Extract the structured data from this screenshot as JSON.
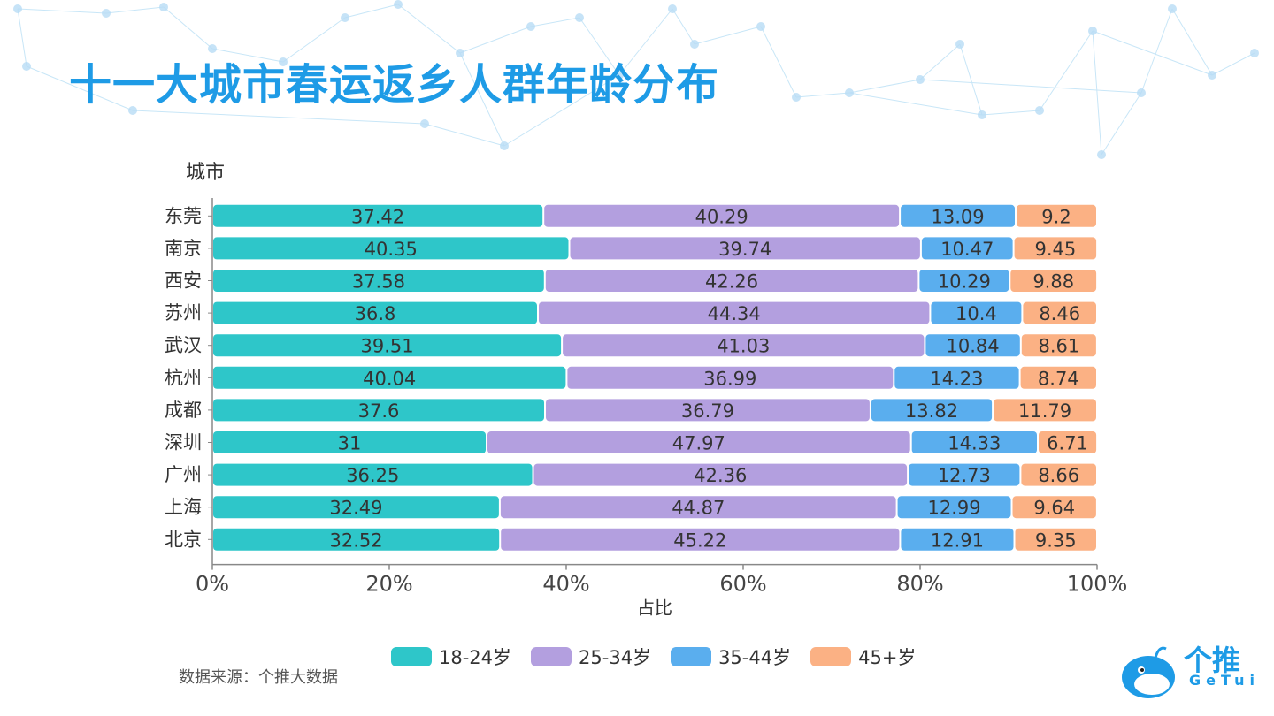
{
  "title": "十一大城市春运返乡人群年龄分布",
  "source": "数据来源：个推大数据",
  "logo": {
    "cn": "个推",
    "en": "GeTui"
  },
  "colors": {
    "title": "#1e9be6",
    "s1": "#2ec6c9",
    "s2": "#b39fdf",
    "s3": "#5aaeee",
    "s4": "#fbb184"
  },
  "chart_data": {
    "type": "bar",
    "orientation": "horizontal",
    "stacked": true,
    "ylabel": "城市",
    "xlabel": "占比",
    "xlim": [
      0,
      100
    ],
    "xticks": [
      "0%",
      "20%",
      "40%",
      "60%",
      "80%",
      "100%"
    ],
    "categories": [
      "东莞",
      "南京",
      "西安",
      "苏州",
      "武汉",
      "杭州",
      "成都",
      "深圳",
      "广州",
      "上海",
      "北京"
    ],
    "series": [
      {
        "name": "18-24岁",
        "color": "#2ec6c9",
        "values": [
          37.42,
          40.35,
          37.58,
          36.8,
          39.51,
          40.04,
          37.6,
          31,
          36.25,
          32.49,
          32.52
        ]
      },
      {
        "name": "25-34岁",
        "color": "#b39fdf",
        "values": [
          40.29,
          39.74,
          42.26,
          44.34,
          41.03,
          36.99,
          36.79,
          47.97,
          42.36,
          44.87,
          45.22
        ]
      },
      {
        "name": "35-44岁",
        "color": "#5aaeee",
        "values": [
          13.09,
          10.47,
          10.29,
          10.4,
          10.84,
          14.23,
          13.82,
          14.33,
          12.73,
          12.99,
          12.91
        ]
      },
      {
        "name": "45+岁",
        "color": "#fbb184",
        "values": [
          9.2,
          9.45,
          9.88,
          8.46,
          8.61,
          8.74,
          11.79,
          6.71,
          8.66,
          9.64,
          9.35
        ]
      }
    ],
    "legend_position": "bottom"
  }
}
